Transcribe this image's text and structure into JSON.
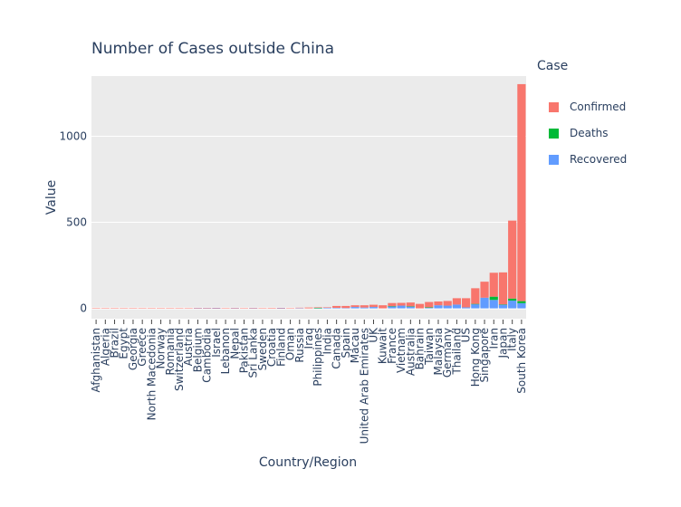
{
  "chart_data": {
    "type": "bar",
    "title": "Number of Cases outside China",
    "xlabel": "Country/Region",
    "ylabel": "Value",
    "legend_title": "Case",
    "legend_position": "right",
    "barmode": "stack",
    "grid": true,
    "ylim": [
      -60,
      1350
    ],
    "yticks": [
      0,
      500,
      1000
    ],
    "categories": [
      "Afghanistan",
      "Algeria",
      "Brazil",
      "Egypt",
      "Georgia",
      "Greece",
      "North Macedonia",
      "Norway",
      "Romania",
      "Switzerland",
      "Austria",
      "Belgium",
      "Cambodia",
      "Israel",
      "Lebanon",
      "Nepal",
      "Pakistan",
      "Sri Lanka",
      "Sweden",
      "Croatia",
      "Finland",
      "Oman",
      "Russia",
      "Iraq",
      "Philippines",
      "India",
      "Canada",
      "Spain",
      "Macau",
      "United Arab Emirates",
      "UK",
      "Kuwait",
      "France",
      "Vietnam",
      "Australia",
      "Bahrain",
      "Taiwan",
      "Malaysia",
      "Germany",
      "Thailand",
      "US",
      "Hong Kong",
      "Singapore",
      "Iran",
      "Japan",
      "Italy",
      "South Korea"
    ],
    "series": [
      {
        "name": "Confirmed",
        "color": "#f8766d",
        "values": [
          1,
          1,
          1,
          1,
          1,
          1,
          1,
          1,
          1,
          1,
          2,
          1,
          1,
          2,
          1,
          1,
          2,
          1,
          1,
          3,
          2,
          2,
          2,
          5,
          3,
          3,
          11,
          12,
          10,
          13,
          13,
          18,
          18,
          16,
          22,
          26,
          31,
          22,
          27,
          37,
          53,
          91,
          93,
          139,
          186,
          453,
          1261
        ]
      },
      {
        "name": "Deaths",
        "color": "#00ba38",
        "values": [
          0,
          0,
          0,
          0,
          0,
          0,
          0,
          0,
          0,
          0,
          0,
          0,
          0,
          0,
          0,
          0,
          0,
          0,
          0,
          0,
          0,
          0,
          0,
          0,
          1,
          0,
          0,
          0,
          0,
          0,
          0,
          0,
          1,
          0,
          1,
          0,
          1,
          0,
          0,
          0,
          0,
          2,
          0,
          19,
          1,
          12,
          12
        ]
      },
      {
        "name": "Recovered",
        "color": "#619cff",
        "values": [
          0,
          0,
          0,
          0,
          0,
          0,
          0,
          0,
          0,
          0,
          0,
          1,
          1,
          1,
          0,
          1,
          0,
          1,
          0,
          0,
          1,
          0,
          2,
          0,
          2,
          3,
          3,
          2,
          8,
          5,
          8,
          0,
          12,
          16,
          11,
          0,
          5,
          18,
          16,
          22,
          6,
          24,
          62,
          49,
          22,
          45,
          30
        ]
      }
    ]
  }
}
